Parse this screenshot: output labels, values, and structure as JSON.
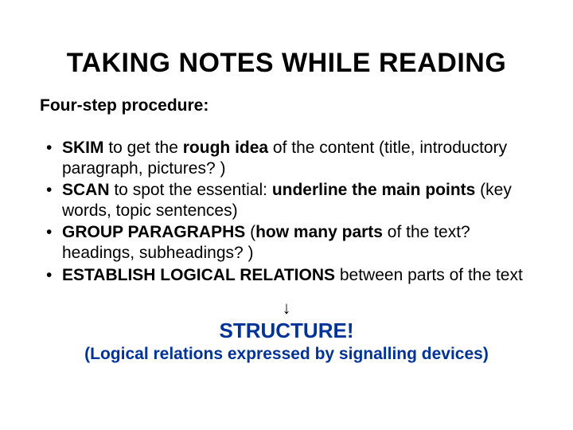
{
  "background_color": "#ffffff",
  "text_color": "#000000",
  "accent_color": "#003399",
  "font_family": "Arial",
  "title": {
    "text": "TAKING NOTES WHILE READING",
    "fontsize": 34,
    "weight": "bold",
    "align": "center"
  },
  "subtitle": {
    "text": "Four-step procedure:",
    "fontsize": 21,
    "weight": "bold"
  },
  "bullets": {
    "fontsize": 21,
    "items": [
      {
        "b1": "SKIM",
        "t1": " to get the ",
        "b2": "rough idea",
        "t2": " of the content (title, introductory paragraph, pictures? )"
      },
      {
        "b1": "SCAN",
        "t1": " to spot the essential: ",
        "b2": "underline the main points",
        "t2": " (key words, topic sentences)"
      },
      {
        "b1": "GROUP PARAGRAPHS",
        "t1": " (",
        "b2": "how many parts",
        "t2": " of the text? headings, subheadings? )"
      },
      {
        "b1": "ESTABLISH LOGICAL RELATIONS",
        "t1": " between parts of the text",
        "b2": "",
        "t2": ""
      }
    ]
  },
  "arrow": {
    "glyph": "↓",
    "fontsize": 22
  },
  "structure": {
    "text": "STRUCTURE!",
    "fontsize": 26,
    "weight": "bold",
    "color": "#003399"
  },
  "footline": {
    "text": "(Logical relations expressed by signalling devices)",
    "fontsize": 21,
    "weight": "bold",
    "color": "#003399"
  }
}
